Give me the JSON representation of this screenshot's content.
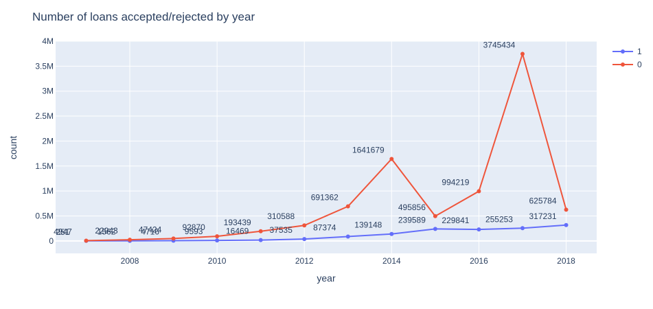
{
  "chart_data": {
    "type": "line",
    "title": "Number of loans accepted/rejected by year",
    "xlabel": "year",
    "ylabel": "count",
    "x": [
      2007,
      2008,
      2009,
      2010,
      2011,
      2012,
      2013,
      2014,
      2015,
      2016,
      2017,
      2018
    ],
    "xlim": [
      2006.3,
      2018.7
    ],
    "ylim": [
      -250000,
      4000000
    ],
    "x_ticks": [
      2008,
      2010,
      2012,
      2014,
      2016,
      2018
    ],
    "x_tick_labels": [
      "2008",
      "2010",
      "2012",
      "2014",
      "2016",
      "2018"
    ],
    "y_ticks": [
      0,
      500000,
      1000000,
      1500000,
      2000000,
      2500000,
      3000000,
      3500000,
      4000000
    ],
    "y_tick_labels": [
      "0",
      "0.5M",
      "1M",
      "1.5M",
      "2M",
      "2.5M",
      "3M",
      "3.5M",
      "4M"
    ],
    "grid": true,
    "legend_position": "top-right",
    "series": [
      {
        "name": "1",
        "color": "#636efa",
        "values": [
          251,
          1562,
          4716,
          9593,
          16469,
          37535,
          87374,
          139148,
          239589,
          229841,
          255253,
          317231
        ],
        "labels": [
          "251",
          "1562",
          "4716",
          "9593",
          "16469",
          "37535",
          "87374",
          "139148",
          "239589",
          "229841",
          "255253",
          "317231"
        ]
      },
      {
        "name": "0",
        "color": "#ef553b",
        "values": [
          4947,
          22943,
          47424,
          92870,
          193439,
          310588,
          691362,
          1641679,
          495856,
          994219,
          3745434,
          625784
        ],
        "labels": [
          "4947",
          "22943",
          "47424",
          "92870",
          "193439",
          "310588",
          "691362",
          "1641679",
          "495856",
          "994219",
          "3745434",
          "625784"
        ]
      }
    ]
  }
}
